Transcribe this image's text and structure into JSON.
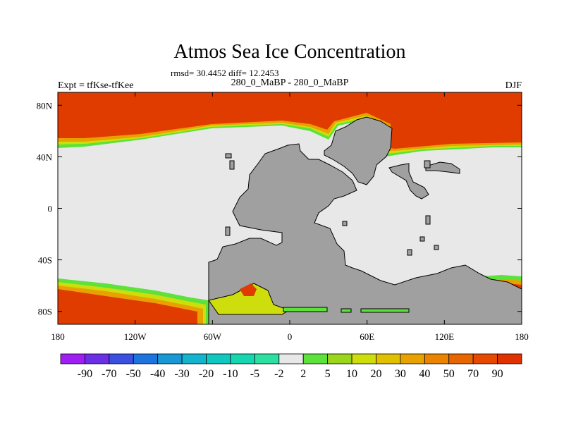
{
  "chart_data": {
    "type": "heatmap",
    "title": "Atmos Sea Ice Concentration",
    "stats_line": "rmsd= 30.4452 diff= 12.2453",
    "subtitle": "280_0_MaBP - 280_0_MaBP",
    "left_label": "Expt = tfKse-tfKee",
    "right_label": "DJF",
    "projection": "cylindrical-equidistant",
    "x_range": [
      -180,
      180
    ],
    "y_range": [
      -90,
      90
    ],
    "x_ticks": [
      {
        "value": -180,
        "label": "180"
      },
      {
        "value": -120,
        "label": "120W"
      },
      {
        "value": -60,
        "label": "60W"
      },
      {
        "value": 0,
        "label": "0"
      },
      {
        "value": 60,
        "label": "60E"
      },
      {
        "value": 120,
        "label": "120E"
      },
      {
        "value": 180,
        "label": "180"
      }
    ],
    "y_ticks": [
      {
        "value": 80,
        "label": "80N"
      },
      {
        "value": 40,
        "label": "40N"
      },
      {
        "value": 0,
        "label": "0"
      },
      {
        "value": -40,
        "label": "40S"
      },
      {
        "value": -80,
        "label": "80S"
      }
    ],
    "colorbar": {
      "levels": [
        "-90",
        "-70",
        "-50",
        "-40",
        "-30",
        "-20",
        "-10",
        "-5",
        "-2",
        "2",
        "5",
        "10",
        "20",
        "30",
        "40",
        "50",
        "70",
        "90"
      ],
      "colors": [
        "#9f1ff2",
        "#6b2fe6",
        "#3b4fe0",
        "#1e74de",
        "#1899d6",
        "#14b4cf",
        "#10c8c0",
        "#16d6b0",
        "#2ddfa0",
        "#e8e8e8",
        "#5ce23a",
        "#9ad61c",
        "#cede0c",
        "#e0c000",
        "#e8a200",
        "#ea8400",
        "#e86600",
        "#e64a00",
        "#e03200"
      ]
    },
    "colors": {
      "land": "#a0a0a0",
      "no_change": "#e8e8e8",
      "arctic_anomaly": "#e03c00"
    },
    "regions": [
      {
        "name": "arctic-positive-anomaly",
        "value": "90"
      },
      {
        "name": "antarctic-positive-anomaly",
        "value": "90"
      },
      {
        "name": "weddell-sea-anomaly",
        "value": "20"
      }
    ]
  }
}
